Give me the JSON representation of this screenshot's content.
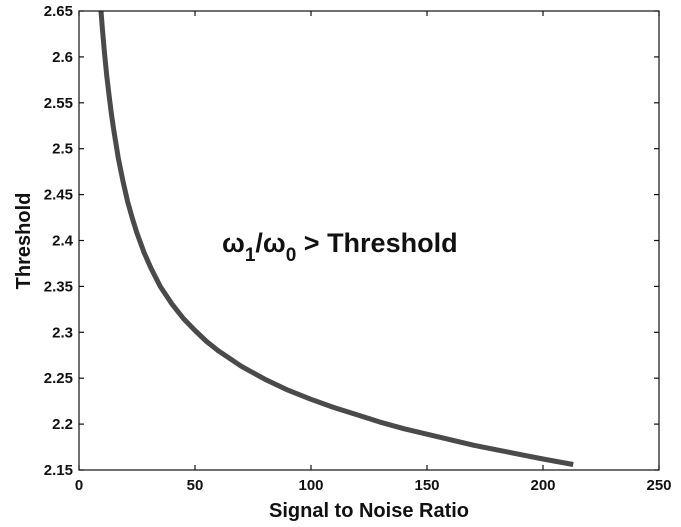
{
  "chart_data": {
    "type": "line",
    "xlabel": "Signal to Noise Ratio",
    "ylabel": "Threshold",
    "xlim": [
      0,
      250
    ],
    "ylim": [
      2.15,
      2.65
    ],
    "xticks": [
      0,
      50,
      100,
      150,
      200,
      250
    ],
    "yticks": [
      2.15,
      2.2,
      2.25,
      2.3,
      2.35,
      2.4,
      2.45,
      2.5,
      2.55,
      2.6,
      2.65
    ],
    "grid": false,
    "legend": "none",
    "annotation": {
      "symbol_1": "ω",
      "sub_1": "1",
      "slash": "/",
      "symbol_0": "ω",
      "sub_0": "0",
      "text": " > Threshold"
    },
    "line_color": "#4a4a4a",
    "series": [
      {
        "x": [
          9.5,
          10,
          11,
          12,
          13,
          14,
          15,
          17,
          19,
          21,
          23,
          25,
          28,
          31,
          35,
          40,
          45,
          50,
          55,
          60,
          70,
          80,
          90,
          100,
          110,
          120,
          130,
          140,
          150,
          160,
          170,
          180,
          190,
          200,
          213
        ],
        "y": [
          2.65,
          2.633,
          2.604,
          2.579,
          2.557,
          2.537,
          2.52,
          2.489,
          2.464,
          2.442,
          2.424,
          2.408,
          2.387,
          2.37,
          2.35,
          2.331,
          2.315,
          2.302,
          2.29,
          2.28,
          2.263,
          2.249,
          2.237,
          2.227,
          2.218,
          2.21,
          2.202,
          2.195,
          2.189,
          2.183,
          2.177,
          2.172,
          2.167,
          2.162,
          2.156
        ]
      }
    ]
  }
}
